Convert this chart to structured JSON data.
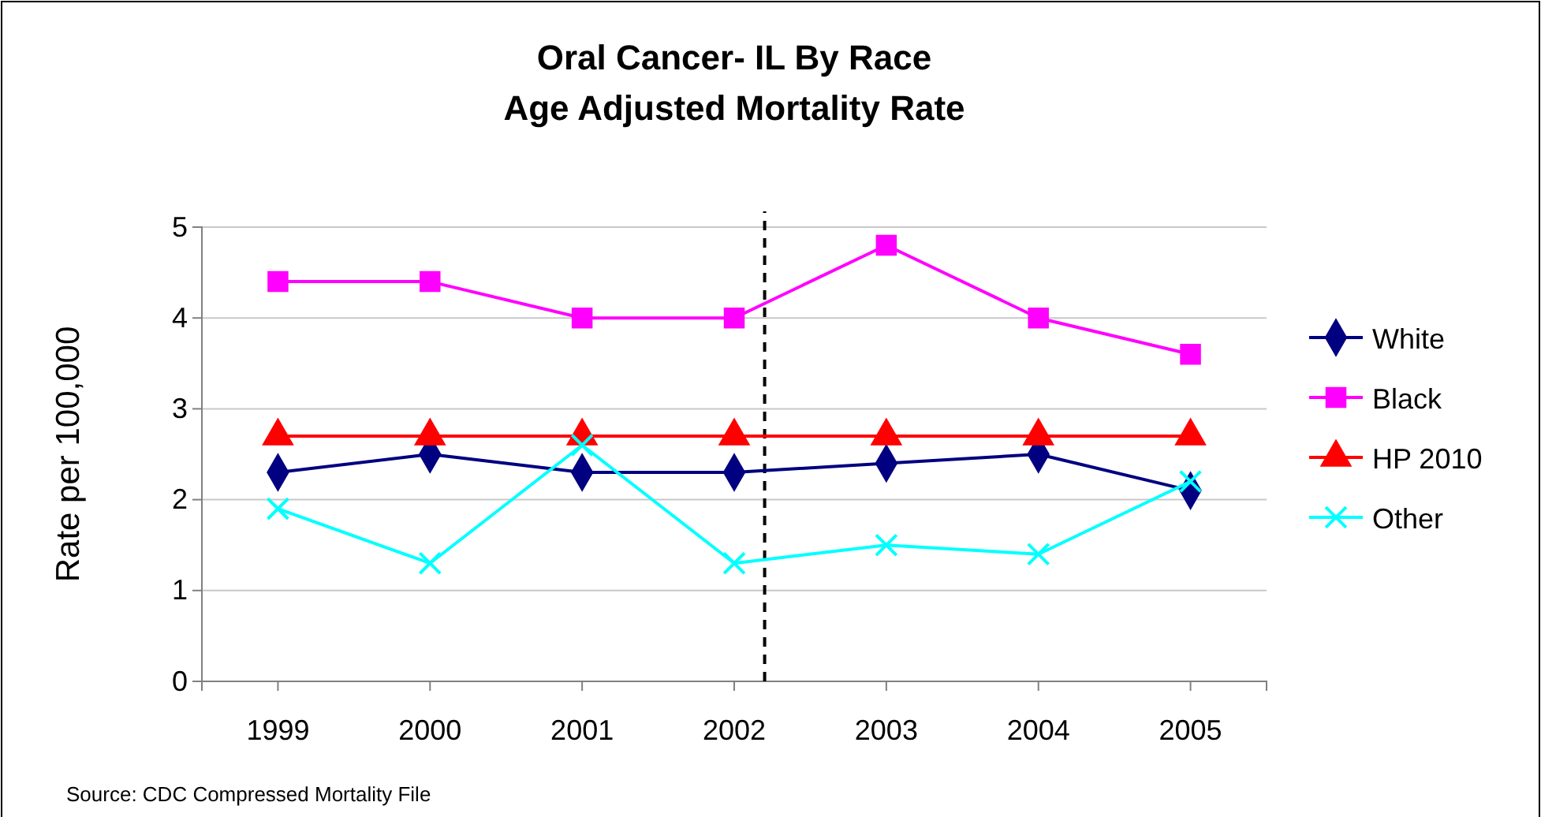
{
  "chart_data": {
    "type": "line",
    "title": "Oral Cancer- IL By Race\nAge Adjusted Mortality Rate",
    "ylabel": "Rate per 100,000",
    "x": [
      1999,
      2000,
      2001,
      2002,
      2003,
      2004,
      2005
    ],
    "xlim": [
      1998.5,
      2005.5
    ],
    "xticks": [
      1999,
      2000,
      2001,
      2002,
      2003,
      2004,
      2005
    ],
    "ylim": [
      0,
      5
    ],
    "yticks": [
      0,
      1,
      2,
      3,
      4,
      5
    ],
    "grid": "y",
    "legend": "right",
    "line_style": "solid",
    "series": [
      {
        "name": "White",
        "color": "#000080",
        "marker": "diamond",
        "values": [
          2.3,
          2.5,
          2.3,
          2.3,
          2.4,
          2.5,
          2.1
        ]
      },
      {
        "name": "Black",
        "color": "#ff00ff",
        "marker": "square",
        "values": [
          4.4,
          4.4,
          4.0,
          4.0,
          4.8,
          4.0,
          3.6
        ]
      },
      {
        "name": "HP 2010",
        "color": "#ff0000",
        "marker": "triangle",
        "values": [
          2.7,
          2.7,
          2.7,
          2.7,
          2.7,
          2.7,
          2.7
        ]
      },
      {
        "name": "Other",
        "color": "#00ffff",
        "marker": "cross",
        "values": [
          1.9,
          1.3,
          2.6,
          1.3,
          1.5,
          1.4,
          2.2
        ]
      }
    ],
    "ref_lines": [
      {
        "axis": "x",
        "value": 2002.2,
        "color": "#000000",
        "line_style": "dashed"
      }
    ],
    "annotations": [
      "Source: CDC Compressed Mortality File"
    ]
  }
}
